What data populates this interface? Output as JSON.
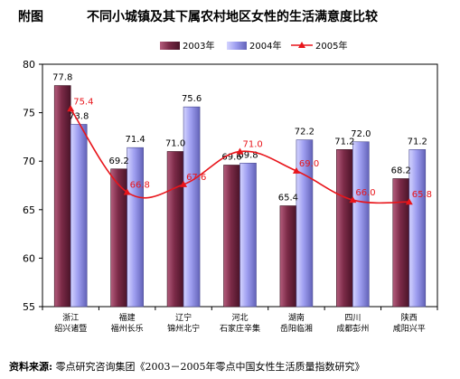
{
  "title": {
    "figure_label": "附图",
    "text": "不同小城镇及其下属农村地区女性的生活满意度比较"
  },
  "source": {
    "label": "资料来源:",
    "text": "零点研究咨询集团《2003－2005年零点中国女性生活质量指数研究》"
  },
  "colors": {
    "bar2003": "#7b2a47",
    "bar2004": "#9e9ef0",
    "line2005": "#e8151b"
  },
  "chart_data": {
    "type": "bar",
    "title": "不同小城镇及其下属农村地区女性的生活满意度比较",
    "ylim": [
      55,
      80
    ],
    "yticks": [
      55,
      60,
      65,
      70,
      75,
      80
    ],
    "grid": false,
    "legend_position": "top",
    "categories": [
      {
        "line1": "浙江",
        "line2": "绍兴诸暨"
      },
      {
        "line1": "福建",
        "line2": "福州长乐"
      },
      {
        "line1": "辽宁",
        "line2": "锦州北宁"
      },
      {
        "line1": "河北",
        "line2": "石家庄辛集"
      },
      {
        "line1": "湖南",
        "line2": "岳阳临湘"
      },
      {
        "line1": "四川",
        "line2": "成都彭州"
      },
      {
        "line1": "陕西",
        "line2": "咸阳兴平"
      }
    ],
    "series": [
      {
        "name": "2003年",
        "kind": "bar",
        "values": [
          77.8,
          69.2,
          71.0,
          69.6,
          65.4,
          71.2,
          68.2
        ]
      },
      {
        "name": "2004年",
        "kind": "bar",
        "values": [
          73.8,
          71.4,
          75.6,
          69.8,
          72.2,
          72.0,
          71.2
        ]
      },
      {
        "name": "2005年",
        "kind": "line",
        "values": [
          75.4,
          66.8,
          67.6,
          71.0,
          69.0,
          66.0,
          65.8
        ]
      }
    ]
  }
}
